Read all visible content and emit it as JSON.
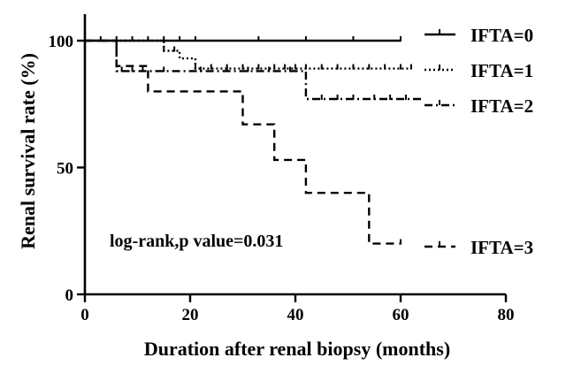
{
  "chart_data": {
    "type": "line",
    "subtype": "kaplan-meier-survival",
    "title": "",
    "xlabel": "Duration after renal biopsy (months)",
    "ylabel": "Renal survival rate (%)",
    "xlim": [
      0,
      80
    ],
    "ylim": [
      0,
      100
    ],
    "xticks": [
      0,
      20,
      40,
      60,
      80
    ],
    "yticks": [
      0,
      50,
      100
    ],
    "grid": false,
    "legend_position": "right",
    "annotation": "log-rank,p value=0.031",
    "series": [
      {
        "name": "IFTA=0",
        "style": "solid",
        "steps": [
          [
            0,
            100
          ],
          [
            60,
            100
          ]
        ],
        "censored": [
          3,
          6,
          9,
          12,
          15,
          18,
          21,
          33,
          42,
          51,
          60
        ]
      },
      {
        "name": "IFTA=1",
        "style": "dotted",
        "steps": [
          [
            0,
            100
          ],
          [
            15,
            100
          ],
          [
            15,
            96
          ],
          [
            18,
            96
          ],
          [
            18,
            93
          ],
          [
            21,
            93
          ],
          [
            21,
            89
          ],
          [
            62,
            89
          ]
        ],
        "censored": [
          15,
          17,
          21,
          24,
          27,
          30,
          33,
          36,
          38,
          40,
          42,
          45,
          48,
          51,
          54,
          57,
          60,
          62
        ]
      },
      {
        "name": "IFTA=2",
        "style": "dashdot",
        "steps": [
          [
            0,
            100
          ],
          [
            6,
            100
          ],
          [
            6,
            88
          ],
          [
            42,
            88
          ],
          [
            42,
            77
          ],
          [
            64,
            77
          ]
        ],
        "censored": [
          7,
          9,
          11,
          15,
          22,
          27,
          31,
          35,
          39,
          45,
          48,
          51,
          55,
          58,
          61
        ]
      },
      {
        "name": "IFTA=3",
        "style": "dashed",
        "steps": [
          [
            0,
            100
          ],
          [
            6,
            100
          ],
          [
            6,
            90
          ],
          [
            12,
            90
          ],
          [
            12,
            80
          ],
          [
            30,
            80
          ],
          [
            30,
            67
          ],
          [
            36,
            67
          ],
          [
            36,
            53
          ],
          [
            42,
            53
          ],
          [
            42,
            40
          ],
          [
            54,
            40
          ],
          [
            54,
            20
          ],
          [
            60,
            20
          ]
        ],
        "censored": [
          60
        ]
      }
    ]
  }
}
